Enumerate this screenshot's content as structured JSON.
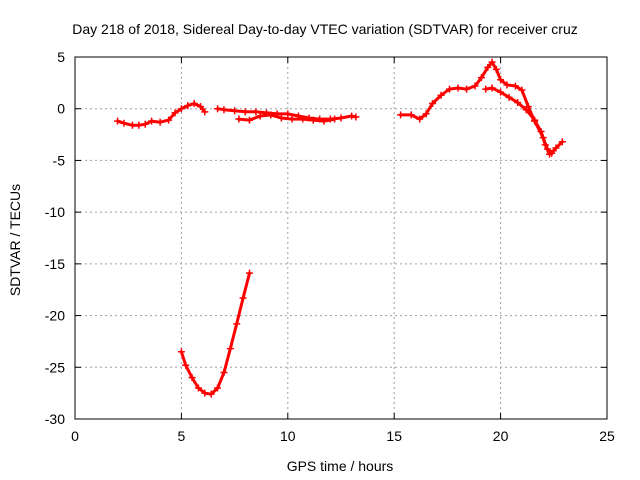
{
  "chart_data": {
    "type": "scatter",
    "title": "Day 218 of 2018, Sidereal Day-to-day VTEC variation (SDTVAR) for receiver cruz",
    "xlabel": "GPS time / hours",
    "ylabel": "SDTVAR / TECUs",
    "xlim": [
      0,
      25
    ],
    "ylim": [
      -30,
      5
    ],
    "xticks": [
      0,
      5,
      10,
      15,
      20,
      25
    ],
    "yticks": [
      5,
      0,
      -5,
      -10,
      -15,
      -20,
      -25,
      -30
    ],
    "xtick_labels": [
      "0",
      "5",
      "10",
      "15",
      "20",
      "25"
    ],
    "ytick_labels": [
      "5",
      "0",
      "-5",
      "-10",
      "-15",
      "-20",
      "-25",
      "-30"
    ],
    "grid": true,
    "marker": "plus",
    "color": "#ff0000",
    "segments": [
      {
        "name": "arc-1",
        "points": [
          [
            2.0,
            -1.2
          ],
          [
            2.3,
            -1.4
          ],
          [
            2.7,
            -1.6
          ],
          [
            3.0,
            -1.6
          ],
          [
            3.3,
            -1.5
          ],
          [
            3.6,
            -1.2
          ],
          [
            4.0,
            -1.3
          ],
          [
            4.4,
            -1.1
          ],
          [
            4.7,
            -0.4
          ],
          [
            5.0,
            0.0
          ],
          [
            5.3,
            0.3
          ],
          [
            5.6,
            0.5
          ],
          [
            5.9,
            0.2
          ],
          [
            6.1,
            -0.3
          ]
        ]
      },
      {
        "name": "arc-2",
        "points": [
          [
            6.7,
            0.0
          ],
          [
            7.0,
            -0.1
          ],
          [
            7.5,
            -0.2
          ],
          [
            8.0,
            -0.3
          ],
          [
            8.5,
            -0.3
          ],
          [
            9.0,
            -0.4
          ],
          [
            9.5,
            -0.5
          ],
          [
            10.0,
            -0.5
          ],
          [
            10.5,
            -0.7
          ],
          [
            11.0,
            -0.9
          ],
          [
            11.5,
            -1.0
          ],
          [
            12.0,
            -1.0
          ],
          [
            12.5,
            -0.9
          ],
          [
            13.0,
            -0.7
          ],
          [
            13.2,
            -0.8
          ]
        ]
      },
      {
        "name": "arc-2-lower",
        "points": [
          [
            7.7,
            -1.0
          ],
          [
            8.2,
            -1.1
          ],
          [
            8.7,
            -0.7
          ],
          [
            9.2,
            -0.6
          ],
          [
            9.7,
            -0.9
          ],
          [
            10.2,
            -1.0
          ],
          [
            10.7,
            -1.0
          ],
          [
            11.2,
            -1.1
          ],
          [
            11.7,
            -1.2
          ],
          [
            12.2,
            -1.0
          ]
        ]
      },
      {
        "name": "arc-3",
        "points": [
          [
            15.3,
            -0.6
          ],
          [
            15.8,
            -0.6
          ],
          [
            16.2,
            -1.0
          ],
          [
            16.5,
            -0.5
          ],
          [
            16.8,
            0.5
          ],
          [
            17.2,
            1.3
          ],
          [
            17.6,
            1.9
          ],
          [
            18.0,
            2.0
          ],
          [
            18.4,
            1.9
          ],
          [
            18.8,
            2.2
          ],
          [
            19.1,
            3.0
          ],
          [
            19.4,
            4.0
          ],
          [
            19.6,
            4.5
          ],
          [
            19.8,
            3.8
          ],
          [
            20.0,
            2.8
          ],
          [
            20.3,
            2.3
          ],
          [
            20.7,
            2.2
          ],
          [
            21.0,
            1.8
          ],
          [
            21.3,
            0.2
          ],
          [
            21.6,
            -1.2
          ],
          [
            22.0,
            -2.8
          ],
          [
            22.2,
            -3.9
          ],
          [
            22.4,
            -4.3
          ],
          [
            22.6,
            -3.8
          ],
          [
            22.9,
            -3.2
          ]
        ]
      },
      {
        "name": "arc-3-lower",
        "points": [
          [
            19.3,
            1.9
          ],
          [
            19.6,
            2.0
          ],
          [
            20.0,
            1.6
          ],
          [
            20.4,
            1.1
          ],
          [
            20.8,
            0.6
          ],
          [
            21.2,
            -0.1
          ],
          [
            21.6,
            -1.1
          ],
          [
            21.9,
            -2.2
          ],
          [
            22.1,
            -3.5
          ],
          [
            22.3,
            -4.4
          ]
        ]
      },
      {
        "name": "arc-4",
        "points": [
          [
            5.0,
            -23.5
          ],
          [
            5.2,
            -24.8
          ],
          [
            5.5,
            -26.0
          ],
          [
            5.8,
            -27.0
          ],
          [
            6.1,
            -27.5
          ],
          [
            6.4,
            -27.6
          ],
          [
            6.7,
            -27.0
          ],
          [
            7.0,
            -25.5
          ],
          [
            7.3,
            -23.2
          ],
          [
            7.6,
            -20.8
          ],
          [
            7.9,
            -18.3
          ],
          [
            8.2,
            -15.9
          ]
        ]
      }
    ]
  }
}
